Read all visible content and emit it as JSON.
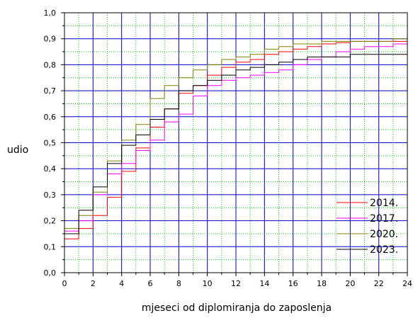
{
  "chart_data": {
    "type": "line",
    "step": true,
    "xlabel": "mjeseci od diplomiranja do zaposlenja",
    "ylabel": "udio",
    "xlim": [
      0,
      24
    ],
    "ylim": [
      0,
      1
    ],
    "x_ticks": [
      "0",
      "2",
      "4",
      "6",
      "8",
      "10",
      "12",
      "14",
      "16",
      "18",
      "20",
      "22",
      "24"
    ],
    "y_ticks": [
      "0,0",
      "0,1",
      "0,2",
      "0,3",
      "0,4",
      "0,5",
      "0,6",
      "0,7",
      "0,8",
      "0,9",
      "1,0"
    ],
    "grid": {
      "major": true,
      "minor": true,
      "major_color": "#0000cc",
      "minor_color": "#00cc00"
    },
    "legend_position": "bottom-right",
    "series": [
      {
        "name": "2014.",
        "color": "#ff0000",
        "x": [
          0,
          1,
          2,
          3,
          4,
          5,
          6,
          7,
          8,
          9,
          10,
          11,
          12,
          13,
          14,
          15,
          16,
          17,
          18,
          19,
          20,
          21,
          22,
          23,
          24
        ],
        "y": [
          0.13,
          0.17,
          0.22,
          0.29,
          0.39,
          0.48,
          0.56,
          0.63,
          0.69,
          0.72,
          0.76,
          0.79,
          0.81,
          0.82,
          0.84,
          0.85,
          0.86,
          0.87,
          0.88,
          0.885,
          0.89,
          0.89,
          0.89,
          0.89,
          0.895
        ]
      },
      {
        "name": "2017.",
        "color": "#ff00ff",
        "x": [
          0,
          1,
          2,
          3,
          4,
          5,
          6,
          7,
          8,
          9,
          10,
          11,
          12,
          13,
          14,
          15,
          16,
          17,
          18,
          19,
          20,
          21,
          22,
          23,
          24
        ],
        "y": [
          0.16,
          0.2,
          0.3,
          0.38,
          0.42,
          0.47,
          0.51,
          0.58,
          0.61,
          0.68,
          0.72,
          0.74,
          0.75,
          0.76,
          0.77,
          0.78,
          0.8,
          0.82,
          0.83,
          0.85,
          0.86,
          0.87,
          0.87,
          0.88,
          0.88
        ]
      },
      {
        "name": "2020.",
        "color": "#808000",
        "x": [
          0,
          1,
          2,
          3,
          4,
          5,
          6,
          7,
          8,
          9,
          10,
          11,
          12,
          13,
          14,
          15,
          16,
          17,
          18,
          19,
          20,
          21,
          22,
          23,
          24
        ],
        "y": [
          0.17,
          0.22,
          0.31,
          0.43,
          0.51,
          0.57,
          0.67,
          0.72,
          0.75,
          0.78,
          0.8,
          0.82,
          0.83,
          0.84,
          0.86,
          0.87,
          0.88,
          0.88,
          0.89,
          0.89,
          0.89,
          0.89,
          0.89,
          0.9,
          0.9
        ]
      },
      {
        "name": "2023.",
        "color": "#000000",
        "x": [
          0,
          1,
          2,
          3,
          4,
          5,
          6,
          7,
          8,
          9,
          10,
          11,
          12,
          13,
          14,
          15,
          16,
          17,
          18,
          19,
          20,
          21,
          22,
          23,
          24
        ],
        "y": [
          0.15,
          0.24,
          0.33,
          0.42,
          0.49,
          0.53,
          0.59,
          0.63,
          0.7,
          0.72,
          0.74,
          0.76,
          0.78,
          0.79,
          0.8,
          0.81,
          0.82,
          0.83,
          0.83,
          0.83,
          0.84,
          0.84,
          0.84,
          0.84,
          0.84
        ]
      }
    ]
  }
}
